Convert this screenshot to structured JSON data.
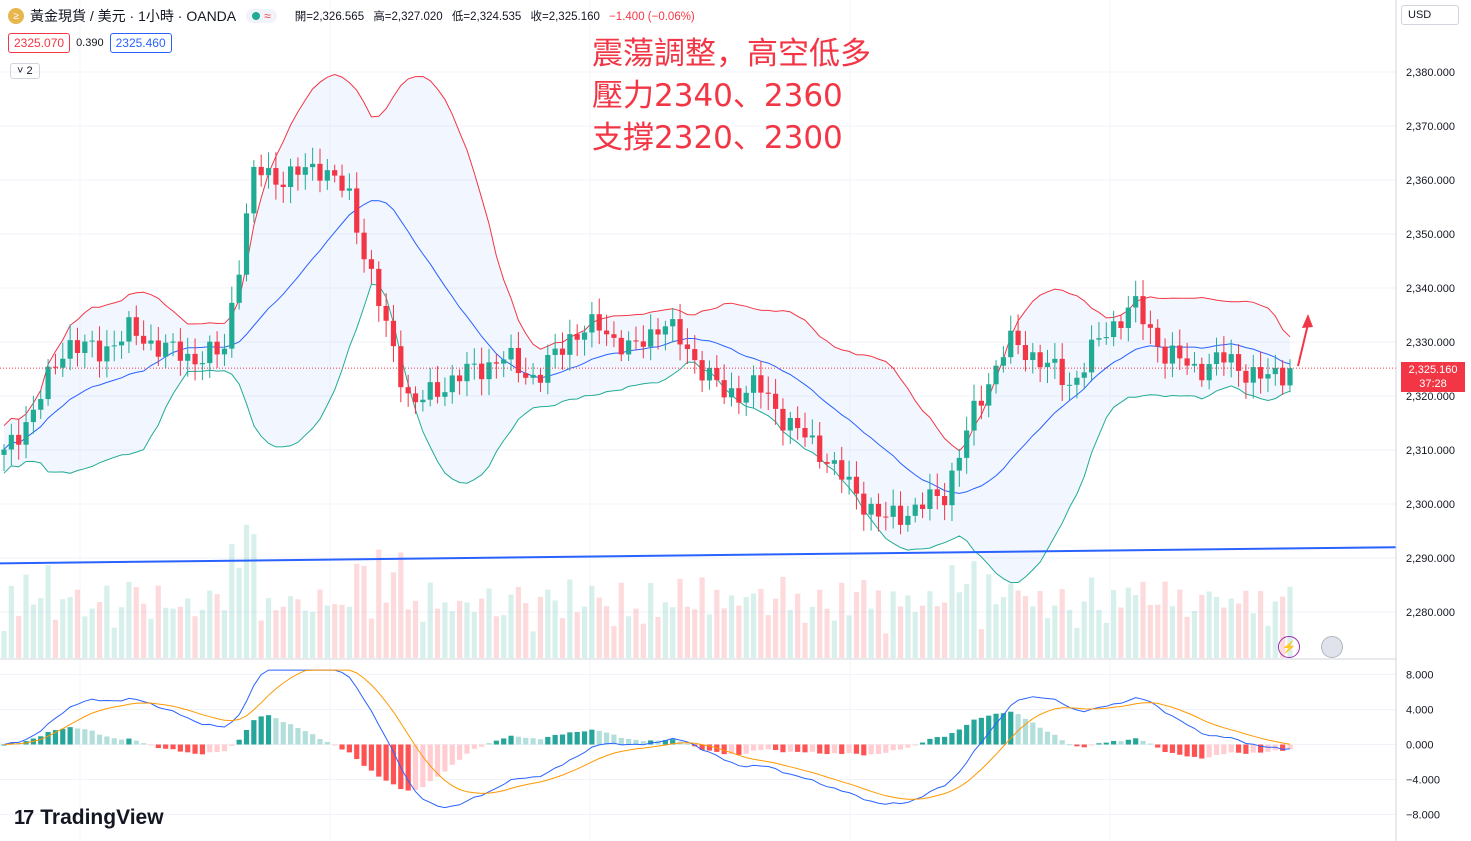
{
  "header": {
    "symbol": "黃金現貨 / 美元 · 1小時 · OANDA",
    "logo_glyph": "≥",
    "open": "開=2,326.565",
    "high": "高=2,327.020",
    "low": "低=2,324.535",
    "close": "收=2,325.160",
    "change": "−1.400 (−0.06%)",
    "wave_icon": "≈"
  },
  "quote": {
    "sell": "2325.070",
    "spread": "0.390",
    "buy": "2325.460"
  },
  "indicator_toggle": "˅ 2",
  "annotation": {
    "line1": "震蕩調整，高空低多",
    "line2": "壓力2340、2360",
    "line3": "支撐2320、2300"
  },
  "currency": "USD",
  "last_price": {
    "value": "2,325.160",
    "countdown": "37:28"
  },
  "brand": {
    "logo": "17",
    "name": "TradingView"
  },
  "icons": {
    "bolt": "lightning-icon",
    "flag": "us-flag-icon"
  },
  "colors": {
    "up": "#22ab94",
    "down": "#f23645",
    "bb_upper": "#f23645",
    "bb_lower": "#22ab94",
    "bb_mid": "#2962ff",
    "trendline": "#2962ff",
    "macd": "#2962ff",
    "signal": "#ff9800"
  },
  "chart_data": [
    {
      "type": "candlestick",
      "price_axis": {
        "ticks": [
          "2,380.000",
          "2,370.000",
          "2,360.000",
          "2,350.000",
          "2,340.000",
          "2,330.000",
          "2,320.000",
          "2,310.000",
          "2,300.000",
          "2,290.000",
          "2,280.000"
        ],
        "ylim": [
          2273,
          2387
        ]
      },
      "key_closes": [
        2309,
        2318,
        2330,
        2328,
        2332,
        2329,
        2327,
        2328,
        2362,
        2360,
        2363,
        2357,
        2336,
        2318,
        2322,
        2325,
        2327,
        2323,
        2331,
        2333,
        2328,
        2334,
        2327,
        2320,
        2322,
        2315,
        2310,
        2303,
        2297,
        2299,
        2302,
        2318,
        2330,
        2327,
        2322,
        2331,
        2337,
        2328,
        2325,
        2327,
        2323,
        2325
      ],
      "indicators": [
        "Bollinger Bands (20, 2)",
        "Volume",
        "Trendline"
      ],
      "trendline": {
        "from": 2289,
        "to": 2292
      }
    },
    {
      "type": "macd",
      "axis": {
        "ticks": [
          "8.000",
          "4.000",
          "0.000",
          "−4.000",
          "−8.000"
        ],
        "ylim": [
          -9.2,
          8.8
        ]
      },
      "series": [
        "MACD",
        "Signal",
        "Histogram"
      ]
    }
  ]
}
